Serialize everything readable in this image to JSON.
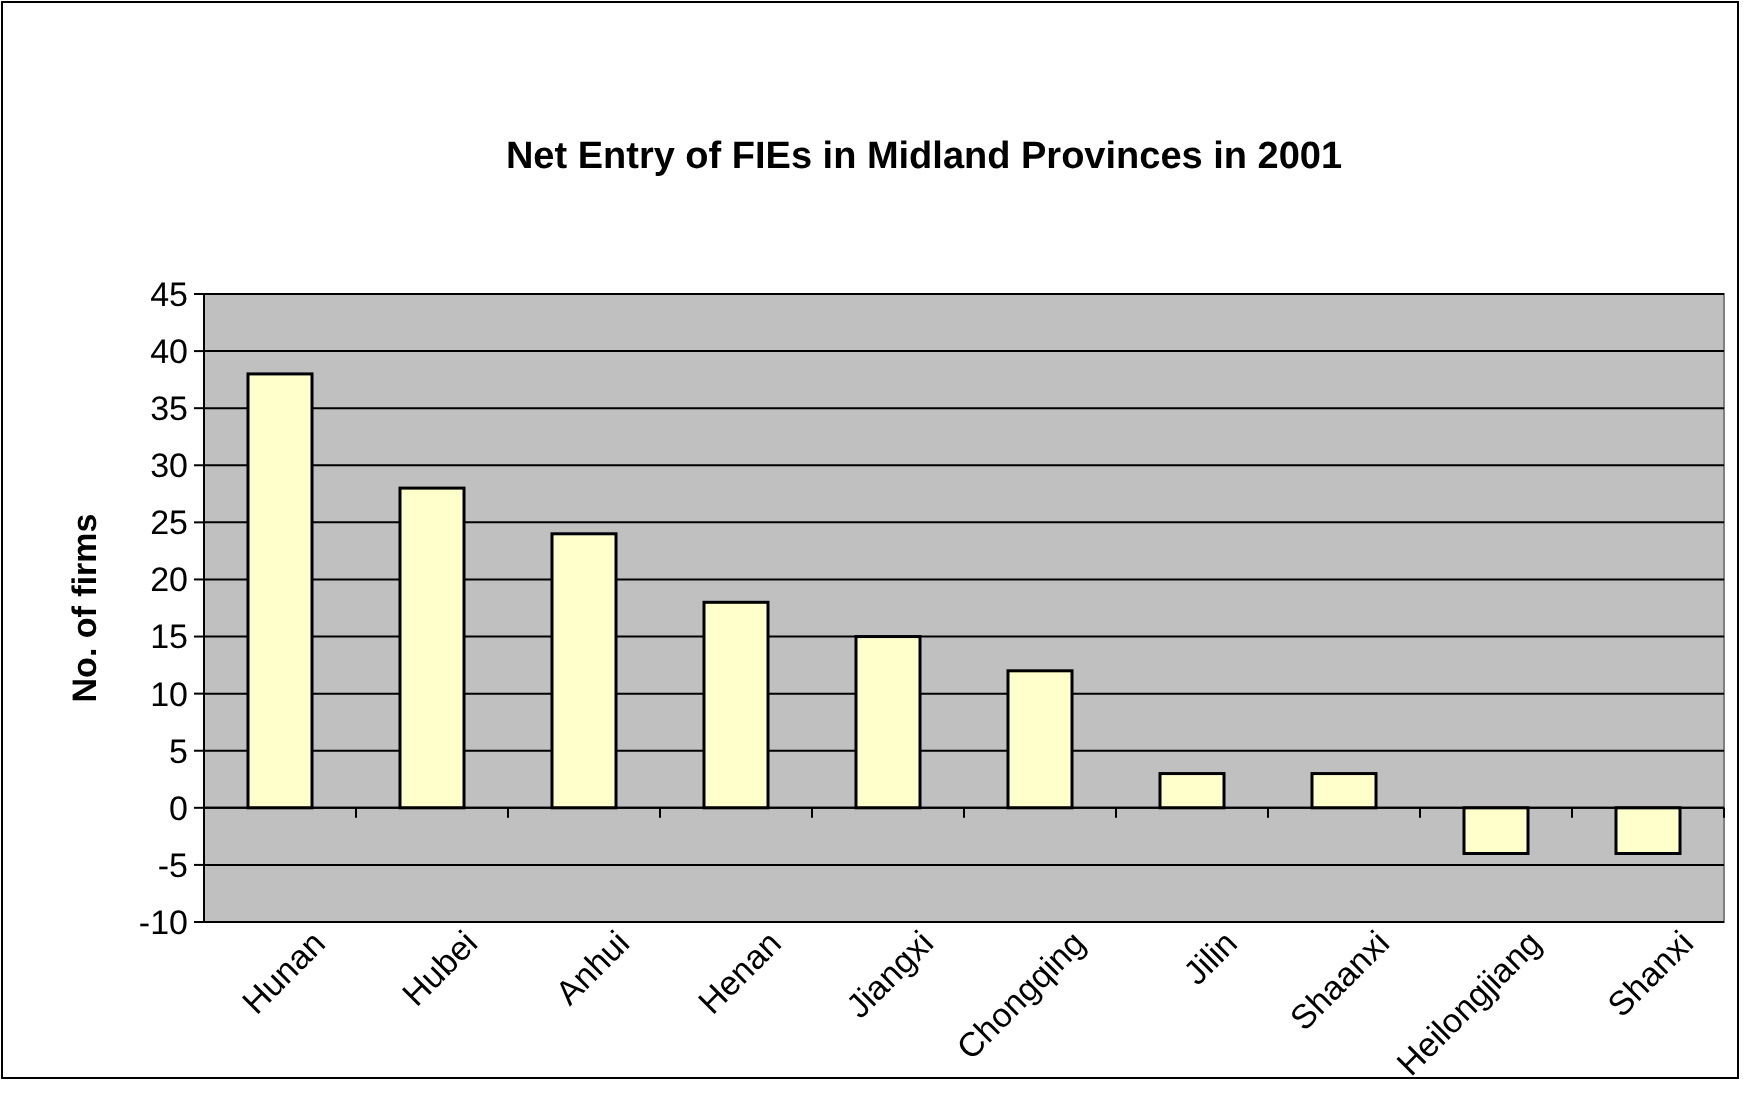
{
  "chart_data": {
    "type": "bar",
    "title": "Net Entry of FIEs in Midland Provinces in 2001",
    "ylabel": "No. of firms",
    "categories": [
      "Hunan",
      "Hubei",
      "Anhui",
      "Henan",
      "Jiangxi",
      "Chongqing",
      "Jilin",
      "Shaanxi",
      "Heilongjiang",
      "Shanxi"
    ],
    "values": [
      38,
      28,
      24,
      18,
      15,
      12,
      3,
      3,
      -4,
      -4
    ],
    "color": "#ffffcc",
    "ylim": [
      -10,
      45
    ],
    "yticks": [
      -10,
      -5,
      0,
      5,
      10,
      15,
      20,
      25,
      30,
      35,
      40,
      45
    ],
    "grid": "y"
  }
}
